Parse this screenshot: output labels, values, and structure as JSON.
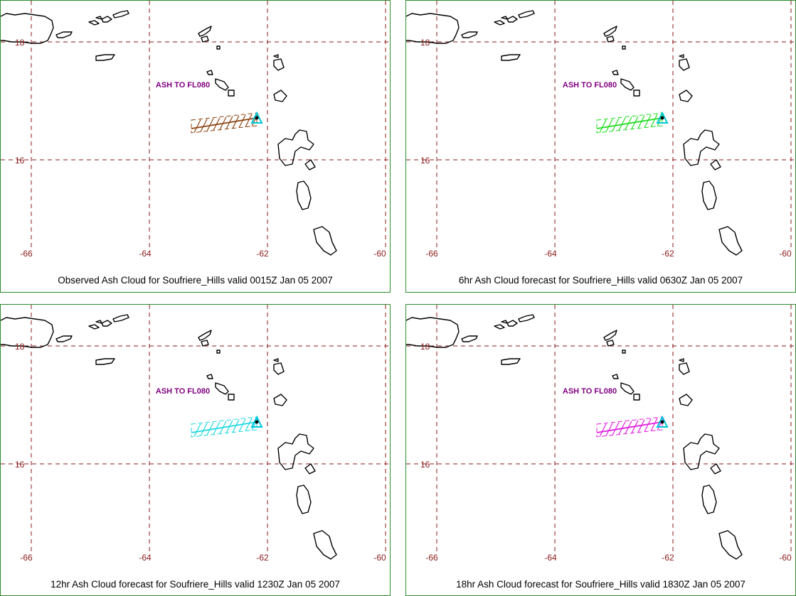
{
  "colors": {
    "border": "#2e8b2e",
    "grid": "#8b1a1a",
    "tick_label": "#8b1a1a",
    "coast": "#000000",
    "annotation": "#800080",
    "volcano": "#00c8d8"
  },
  "axes": {
    "lon_labels": [
      "-66",
      "-64",
      "-62",
      "-60"
    ],
    "lat_labels": [
      "18",
      "16"
    ]
  },
  "annotation_text": "ASH TO FL080",
  "panels": [
    {
      "caption": "Observed Ash Cloud for Soufriere_Hills valid 0015Z Jan 05 2007",
      "cloud_color": "#8b4513"
    },
    {
      "caption": "6hr Ash Cloud forecast for Soufriere_Hills valid 0630Z Jan 05 2007",
      "cloud_color": "#22dd22"
    },
    {
      "caption": "12hr Ash Cloud forecast for Soufriere_Hills valid 1230Z Jan 05 2007",
      "cloud_color": "#20d8e0"
    },
    {
      "caption": "18hr Ash Cloud forecast for Soufriere_Hills valid 1830Z Jan 05 2007",
      "cloud_color": "#e020e0"
    }
  ]
}
